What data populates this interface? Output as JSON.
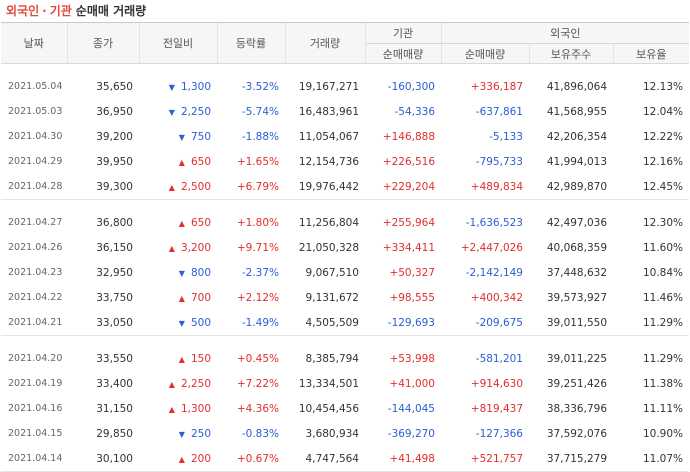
{
  "title": {
    "main": "외국인",
    "dot": "·",
    "main2": "기관",
    "sub": "순매매 거래량"
  },
  "headers": {
    "date": "날짜",
    "close": "종가",
    "change": "전일비",
    "rate": "등락률",
    "volume": "거래량",
    "inst_group": "기관",
    "foreign_group": "외국인",
    "inst_net": "순매매량",
    "foreign_net": "순매매량",
    "holdings": "보유주수",
    "hold_ratio": "보유율"
  },
  "colors": {
    "up": "#e12e2e",
    "down": "#2a5dd6"
  },
  "groups": [
    [
      {
        "date": "2021.05.04",
        "close": "35,650",
        "dir": "down",
        "change": "1,300",
        "rate": "-3.52%",
        "volume": "19,167,271",
        "inst": "-160,300",
        "foreign": "+336,187",
        "holdings": "41,896,064",
        "ratio": "12.13%"
      },
      {
        "date": "2021.05.03",
        "close": "36,950",
        "dir": "down",
        "change": "2,250",
        "rate": "-5.74%",
        "volume": "16,483,961",
        "inst": "-54,336",
        "foreign": "-637,861",
        "holdings": "41,568,955",
        "ratio": "12.04%"
      },
      {
        "date": "2021.04.30",
        "close": "39,200",
        "dir": "down",
        "change": "750",
        "rate": "-1.88%",
        "volume": "11,054,067",
        "inst": "+146,888",
        "foreign": "-5,133",
        "holdings": "42,206,354",
        "ratio": "12.22%"
      },
      {
        "date": "2021.04.29",
        "close": "39,950",
        "dir": "up",
        "change": "650",
        "rate": "+1.65%",
        "volume": "12,154,736",
        "inst": "+226,516",
        "foreign": "-795,733",
        "holdings": "41,994,013",
        "ratio": "12.16%"
      },
      {
        "date": "2021.04.28",
        "close": "39,300",
        "dir": "up",
        "change": "2,500",
        "rate": "+6.79%",
        "volume": "19,976,442",
        "inst": "+229,204",
        "foreign": "+489,834",
        "holdings": "42,989,870",
        "ratio": "12.45%"
      }
    ],
    [
      {
        "date": "2021.04.27",
        "close": "36,800",
        "dir": "up",
        "change": "650",
        "rate": "+1.80%",
        "volume": "11,256,804",
        "inst": "+255,964",
        "foreign": "-1,636,523",
        "holdings": "42,497,036",
        "ratio": "12.30%"
      },
      {
        "date": "2021.04.26",
        "close": "36,150",
        "dir": "up",
        "change": "3,200",
        "rate": "+9.71%",
        "volume": "21,050,328",
        "inst": "+334,411",
        "foreign": "+2,447,026",
        "holdings": "40,068,359",
        "ratio": "11.60%"
      },
      {
        "date": "2021.04.23",
        "close": "32,950",
        "dir": "down",
        "change": "800",
        "rate": "-2.37%",
        "volume": "9,067,510",
        "inst": "+50,327",
        "foreign": "-2,142,149",
        "holdings": "37,448,632",
        "ratio": "10.84%"
      },
      {
        "date": "2021.04.22",
        "close": "33,750",
        "dir": "up",
        "change": "700",
        "rate": "+2.12%",
        "volume": "9,131,672",
        "inst": "+98,555",
        "foreign": "+400,342",
        "holdings": "39,573,927",
        "ratio": "11.46%"
      },
      {
        "date": "2021.04.21",
        "close": "33,050",
        "dir": "down",
        "change": "500",
        "rate": "-1.49%",
        "volume": "4,505,509",
        "inst": "-129,693",
        "foreign": "-209,675",
        "holdings": "39,011,550",
        "ratio": "11.29%"
      }
    ],
    [
      {
        "date": "2021.04.20",
        "close": "33,550",
        "dir": "up",
        "change": "150",
        "rate": "+0.45%",
        "volume": "8,385,794",
        "inst": "+53,998",
        "foreign": "-581,201",
        "holdings": "39,011,225",
        "ratio": "11.29%"
      },
      {
        "date": "2021.04.19",
        "close": "33,400",
        "dir": "up",
        "change": "2,250",
        "rate": "+7.22%",
        "volume": "13,334,501",
        "inst": "+41,000",
        "foreign": "+914,630",
        "holdings": "39,251,426",
        "ratio": "11.38%"
      },
      {
        "date": "2021.04.16",
        "close": "31,150",
        "dir": "up",
        "change": "1,300",
        "rate": "+4.36%",
        "volume": "10,454,456",
        "inst": "-144,045",
        "foreign": "+819,437",
        "holdings": "38,336,796",
        "ratio": "11.11%"
      },
      {
        "date": "2021.04.15",
        "close": "29,850",
        "dir": "down",
        "change": "250",
        "rate": "-0.83%",
        "volume": "3,680,934",
        "inst": "-369,270",
        "foreign": "-127,366",
        "holdings": "37,592,076",
        "ratio": "10.90%"
      },
      {
        "date": "2021.04.14",
        "close": "30,100",
        "dir": "up",
        "change": "200",
        "rate": "+0.67%",
        "volume": "4,747,564",
        "inst": "+41,498",
        "foreign": "+521,757",
        "holdings": "37,715,279",
        "ratio": "11.07%"
      }
    ]
  ]
}
